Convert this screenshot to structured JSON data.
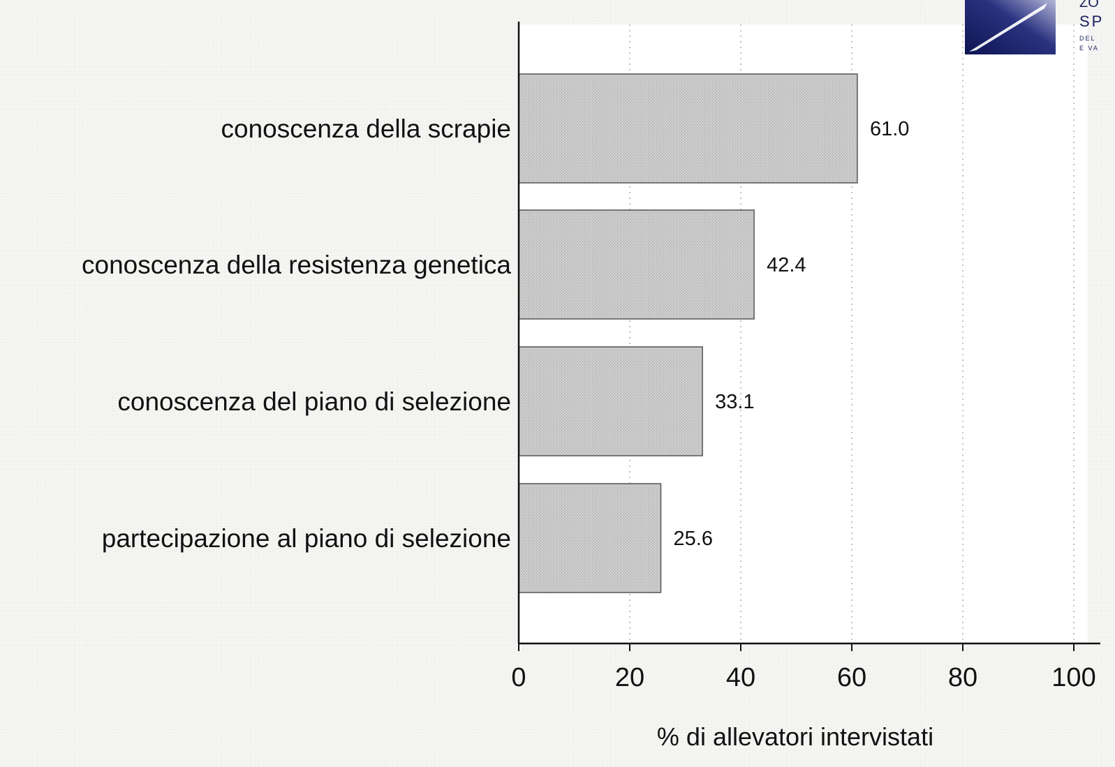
{
  "chart_data": {
    "type": "bar",
    "orientation": "horizontal",
    "categories": [
      "conoscenza della scrapie",
      "conoscenza della resistenza genetica",
      "conoscenza del piano di selezione",
      "partecipazione al piano di selezione"
    ],
    "values": [
      61.0,
      42.4,
      33.1,
      25.6
    ],
    "value_labels": [
      "61.0",
      "42.4",
      "33.1",
      "25.6"
    ],
    "xlabel": "% di allevatori intervistati",
    "ylabel": "",
    "title": "",
    "xlim": [
      0,
      100
    ],
    "xticks": [
      0,
      20,
      40,
      60,
      80,
      100
    ],
    "xtick_labels": [
      "0",
      "20",
      "40",
      "60",
      "80",
      "100"
    ],
    "grid": "vertical dotted",
    "legend": "none",
    "colors": {
      "bar_fill": "#c9c9c9",
      "bar_stroke": "#555555",
      "axis": "#111111",
      "grid": "#9a9a9a"
    }
  },
  "logo": {
    "name": "institute-logo",
    "text_lines": [
      "ZO",
      "SP",
      "DEL",
      "E VA"
    ]
  }
}
